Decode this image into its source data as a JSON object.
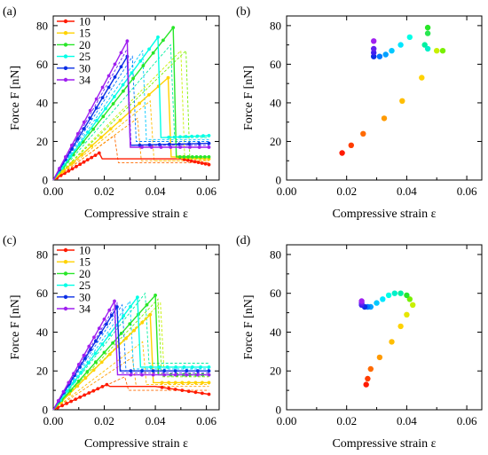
{
  "chart_data": [
    {
      "id": "a",
      "type": "line",
      "panel_label": "(a)",
      "xlabel": "Compressive strain ε",
      "ylabel": "Force F [nN]",
      "xlim": [
        0,
        0.065
      ],
      "ylim": [
        0,
        85
      ],
      "xticks": [
        "0.00",
        "0.02",
        "0.04",
        "0.06"
      ],
      "yticks": [
        "0",
        "20",
        "40",
        "60",
        "80"
      ],
      "legend": {
        "position": "top-left",
        "entries": [
          "10",
          "15",
          "20",
          "25",
          "30",
          "34"
        ]
      },
      "series": [
        {
          "name": "10",
          "color": "#ff1a00",
          "peak": [
            0.018,
            14
          ],
          "post": [
            [
              0.05,
              11
            ],
            [
              0.061,
              8
            ]
          ]
        },
        {
          "name": "15",
          "color": "#ffd200",
          "peak": [
            0.045,
            53
          ],
          "post": [
            [
              0.047,
              12
            ],
            [
              0.061,
              11
            ]
          ]
        },
        {
          "name": "20",
          "color": "#28e628",
          "peak": [
            0.047,
            79
          ],
          "post": [
            [
              0.048,
              12
            ],
            [
              0.061,
              12
            ]
          ]
        },
        {
          "name": "25",
          "color": "#00ffe6",
          "peak": [
            0.041,
            74
          ],
          "post": [
            [
              0.043,
              22
            ],
            [
              0.061,
              23
            ]
          ]
        },
        {
          "name": "30",
          "color": "#0a2ee6",
          "peak": [
            0.029,
            64
          ],
          "post": [
            [
              0.03,
              18
            ],
            [
              0.061,
              19
            ]
          ]
        },
        {
          "name": "34",
          "color": "#a020f0",
          "peak": [
            0.029,
            72
          ],
          "post": [
            [
              0.031,
              17
            ],
            [
              0.061,
              17
            ]
          ]
        }
      ],
      "intermediate": [
        {
          "color": "#ff6a00",
          "peak": [
            0.024,
            23
          ],
          "post": [
            [
              0.061,
              9
            ]
          ]
        },
        {
          "color": "#ff9a00",
          "peak": [
            0.033,
            32
          ],
          "post": [
            [
              0.061,
              10
            ]
          ]
        },
        {
          "color": "#ffbe00",
          "peak": [
            0.038,
            41
          ],
          "post": [
            [
              0.061,
              10
            ]
          ]
        },
        {
          "color": "#c8f000",
          "peak": [
            0.05,
            67
          ],
          "post": [
            [
              0.061,
              11
            ]
          ]
        },
        {
          "color": "#78f000",
          "peak": [
            0.052,
            67
          ],
          "post": [
            [
              0.061,
              12
            ]
          ]
        },
        {
          "color": "#00f0a0",
          "peak": [
            0.046,
            70
          ],
          "post": [
            [
              0.061,
              22
            ]
          ]
        },
        {
          "color": "#00c8ff",
          "peak": [
            0.035,
            67
          ],
          "post": [
            [
              0.061,
              21
            ]
          ]
        },
        {
          "color": "#0078ff",
          "peak": [
            0.031,
            64
          ],
          "post": [
            [
              0.061,
              20
            ]
          ]
        },
        {
          "color": "#6020f0",
          "peak": [
            0.029,
            68
          ],
          "post": [
            [
              0.061,
              18
            ]
          ]
        }
      ]
    },
    {
      "id": "b",
      "type": "scatter",
      "panel_label": "(b)",
      "xlabel": "Compressive strain ε",
      "ylabel": "Force F [nN]",
      "xlim": [
        0,
        0.065
      ],
      "ylim": [
        0,
        85
      ],
      "xticks": [
        "0.00",
        "0.02",
        "0.04",
        "0.06"
      ],
      "yticks": [
        "0",
        "20",
        "40",
        "60",
        "80"
      ],
      "points": [
        {
          "x": 0.0185,
          "y": 14,
          "color": "#ff1a00"
        },
        {
          "x": 0.0215,
          "y": 18,
          "color": "#ff3c00"
        },
        {
          "x": 0.0255,
          "y": 24,
          "color": "#ff6a00"
        },
        {
          "x": 0.0325,
          "y": 32,
          "color": "#ff9a00"
        },
        {
          "x": 0.0385,
          "y": 41,
          "color": "#ffbe00"
        },
        {
          "x": 0.045,
          "y": 53,
          "color": "#ffd200"
        },
        {
          "x": 0.05,
          "y": 67,
          "color": "#c8f000"
        },
        {
          "x": 0.052,
          "y": 67,
          "color": "#78f000"
        },
        {
          "x": 0.047,
          "y": 79,
          "color": "#28e628"
        },
        {
          "x": 0.047,
          "y": 76,
          "color": "#28e650"
        },
        {
          "x": 0.046,
          "y": 70,
          "color": "#00f0a0"
        },
        {
          "x": 0.047,
          "y": 68,
          "color": "#00f0c8"
        },
        {
          "x": 0.041,
          "y": 74,
          "color": "#00ffe6"
        },
        {
          "x": 0.038,
          "y": 70,
          "color": "#00e6ff"
        },
        {
          "x": 0.035,
          "y": 67,
          "color": "#00c8ff"
        },
        {
          "x": 0.033,
          "y": 65,
          "color": "#00a0ff"
        },
        {
          "x": 0.031,
          "y": 64,
          "color": "#0078ff"
        },
        {
          "x": 0.029,
          "y": 64,
          "color": "#0a2ee6"
        },
        {
          "x": 0.029,
          "y": 66,
          "color": "#3c20f0"
        },
        {
          "x": 0.029,
          "y": 68,
          "color": "#6020f0"
        },
        {
          "x": 0.029,
          "y": 72,
          "color": "#a020f0"
        }
      ]
    },
    {
      "id": "c",
      "type": "line",
      "panel_label": "(c)",
      "xlabel": "Compressive strain ε",
      "ylabel": "Force F [nN]",
      "xlim": [
        0,
        0.065
      ],
      "ylim": [
        0,
        85
      ],
      "xticks": [
        "0.00",
        "0.02",
        "0.04",
        "0.06"
      ],
      "yticks": [
        "0",
        "20",
        "40",
        "60",
        "80"
      ],
      "legend": {
        "position": "top-left",
        "entries": [
          "10",
          "15",
          "20",
          "25",
          "30",
          "34"
        ]
      },
      "series": [
        {
          "name": "10",
          "color": "#ff1a00",
          "peak": [
            0.021,
            13
          ],
          "post": [
            [
              0.04,
              12
            ],
            [
              0.061,
              8
            ]
          ]
        },
        {
          "name": "15",
          "color": "#ffd200",
          "peak": [
            0.038,
            49
          ],
          "post": [
            [
              0.04,
              14
            ],
            [
              0.061,
              14
            ]
          ]
        },
        {
          "name": "20",
          "color": "#28e628",
          "peak": [
            0.04,
            59
          ],
          "post": [
            [
              0.041,
              18
            ],
            [
              0.061,
              18
            ]
          ]
        },
        {
          "name": "25",
          "color": "#00ffe6",
          "peak": [
            0.033,
            58
          ],
          "post": [
            [
              0.035,
              22
            ],
            [
              0.061,
              22
            ]
          ]
        },
        {
          "name": "30",
          "color": "#0a2ee6",
          "peak": [
            0.025,
            53
          ],
          "post": [
            [
              0.026,
              20
            ],
            [
              0.061,
              20
            ]
          ]
        },
        {
          "name": "34",
          "color": "#a020f0",
          "peak": [
            0.024,
            56
          ],
          "post": [
            [
              0.026,
              18
            ],
            [
              0.061,
              18
            ]
          ]
        }
      ],
      "intermediate": [
        {
          "color": "#ff6a00",
          "peak": [
            0.028,
            17
          ],
          "post": [
            [
              0.061,
              10
            ]
          ]
        },
        {
          "color": "#ff9a00",
          "peak": [
            0.031,
            27
          ],
          "post": [
            [
              0.061,
              12
            ]
          ]
        },
        {
          "color": "#ffbe00",
          "peak": [
            0.035,
            35
          ],
          "post": [
            [
              0.061,
              13
            ]
          ]
        },
        {
          "color": "#c8f000",
          "peak": [
            0.042,
            55
          ],
          "post": [
            [
              0.061,
              18
            ]
          ]
        },
        {
          "color": "#78f000",
          "peak": [
            0.041,
            57
          ],
          "post": [
            [
              0.061,
              17
            ]
          ]
        },
        {
          "color": "#00f0a0",
          "peak": [
            0.036,
            60
          ],
          "post": [
            [
              0.061,
              24
            ]
          ]
        },
        {
          "color": "#00c8ff",
          "peak": [
            0.03,
            56
          ],
          "post": [
            [
              0.061,
              21
            ]
          ]
        },
        {
          "color": "#0078ff",
          "peak": [
            0.027,
            54
          ],
          "post": [
            [
              0.061,
              20
            ]
          ]
        },
        {
          "color": "#6020f0",
          "peak": [
            0.025,
            55
          ],
          "post": [
            [
              0.061,
              19
            ]
          ]
        }
      ]
    },
    {
      "id": "d",
      "type": "scatter",
      "panel_label": "(d)",
      "xlabel": "Compressive strain ε",
      "ylabel": "Force F [nN]",
      "xlim": [
        0,
        0.065
      ],
      "ylim": [
        0,
        85
      ],
      "xticks": [
        "0.00",
        "0.02",
        "0.04",
        "0.06"
      ],
      "yticks": [
        "0",
        "20",
        "40",
        "60",
        "80"
      ],
      "points": [
        {
          "x": 0.0265,
          "y": 13,
          "color": "#ff1a00"
        },
        {
          "x": 0.027,
          "y": 16,
          "color": "#ff3c00"
        },
        {
          "x": 0.028,
          "y": 21,
          "color": "#ff6a00"
        },
        {
          "x": 0.031,
          "y": 27,
          "color": "#ff9a00"
        },
        {
          "x": 0.035,
          "y": 35,
          "color": "#ffbe00"
        },
        {
          "x": 0.038,
          "y": 43,
          "color": "#ffd200"
        },
        {
          "x": 0.04,
          "y": 49,
          "color": "#e6e600"
        },
        {
          "x": 0.042,
          "y": 54,
          "color": "#c8f000"
        },
        {
          "x": 0.041,
          "y": 57,
          "color": "#78f000"
        },
        {
          "x": 0.04,
          "y": 59,
          "color": "#28e628"
        },
        {
          "x": 0.038,
          "y": 60,
          "color": "#00f0a0"
        },
        {
          "x": 0.036,
          "y": 60,
          "color": "#00f0c8"
        },
        {
          "x": 0.034,
          "y": 59,
          "color": "#00ffe6"
        },
        {
          "x": 0.032,
          "y": 57,
          "color": "#00e6ff"
        },
        {
          "x": 0.03,
          "y": 55,
          "color": "#00c8ff"
        },
        {
          "x": 0.028,
          "y": 53,
          "color": "#00a0ff"
        },
        {
          "x": 0.027,
          "y": 53,
          "color": "#0078ff"
        },
        {
          "x": 0.026,
          "y": 53,
          "color": "#0a2ee6"
        },
        {
          "x": 0.025,
          "y": 54,
          "color": "#3c20f0"
        },
        {
          "x": 0.025,
          "y": 55,
          "color": "#6020f0"
        },
        {
          "x": 0.025,
          "y": 56,
          "color": "#a020f0"
        }
      ]
    }
  ]
}
